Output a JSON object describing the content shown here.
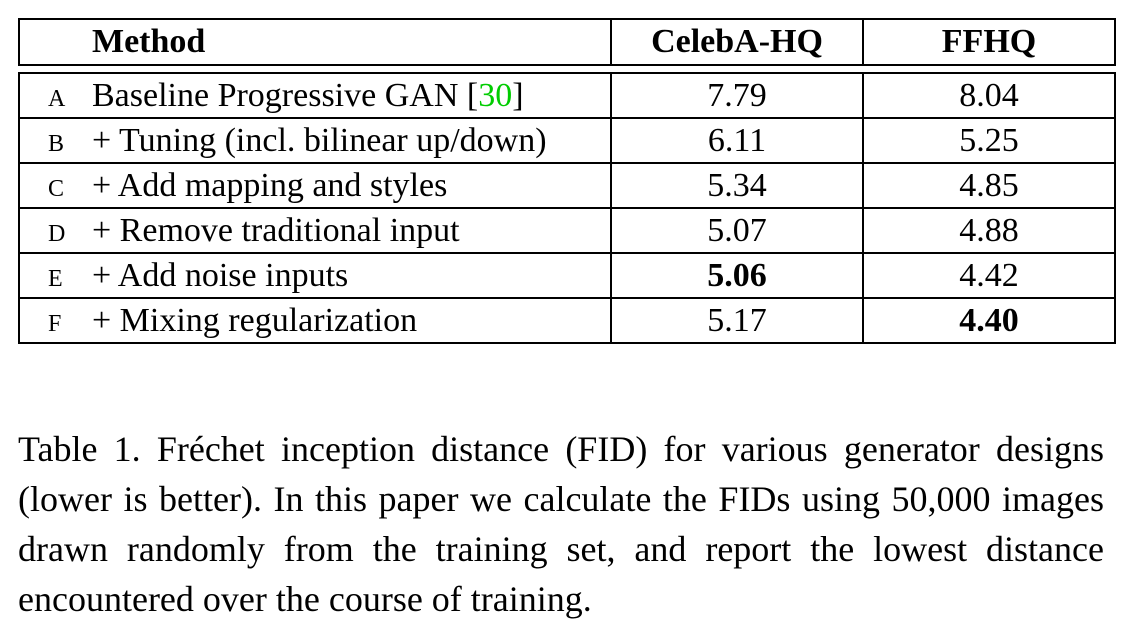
{
  "table": {
    "headers": {
      "method": "Method",
      "celeba": "CelebA-HQ",
      "ffhq": "FFHQ"
    },
    "rows": [
      {
        "id": "A",
        "method_prefix": "Baseline Progressive GAN [",
        "cite": "30",
        "method_suffix": "]",
        "celeba": "7.79",
        "ffhq": "8.04",
        "celeba_best": false,
        "ffhq_best": false
      },
      {
        "id": "B",
        "method_prefix": "+ Tuning (incl. bilinear up/down)",
        "cite": "",
        "method_suffix": "",
        "celeba": "6.11",
        "ffhq": "5.25",
        "celeba_best": false,
        "ffhq_best": false
      },
      {
        "id": "C",
        "method_prefix": "+ Add mapping and styles",
        "cite": "",
        "method_suffix": "",
        "celeba": "5.34",
        "ffhq": "4.85",
        "celeba_best": false,
        "ffhq_best": false
      },
      {
        "id": "D",
        "method_prefix": "+ Remove traditional input",
        "cite": "",
        "method_suffix": "",
        "celeba": "5.07",
        "ffhq": "4.88",
        "celeba_best": false,
        "ffhq_best": false
      },
      {
        "id": "E",
        "method_prefix": "+ Add noise inputs",
        "cite": "",
        "method_suffix": "",
        "celeba": "5.06",
        "ffhq": "4.42",
        "celeba_best": true,
        "ffhq_best": false
      },
      {
        "id": "F",
        "method_prefix": "+ Mixing regularization",
        "cite": "",
        "method_suffix": "",
        "celeba": "5.17",
        "ffhq": "4.40",
        "celeba_best": false,
        "ffhq_best": true
      }
    ]
  },
  "caption": "Table 1. Fréchet inception distance (FID) for various generator designs (lower is better). In this paper we calculate the FIDs using 50,000 images drawn randomly from the training set, and report the lowest distance encountered over the course of training.",
  "colors": {
    "citation": "#00cc00",
    "text": "#000000",
    "background": "#ffffff"
  }
}
